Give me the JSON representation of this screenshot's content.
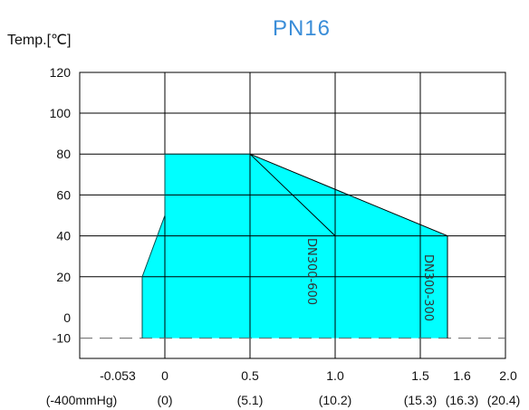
{
  "chart_data": {
    "type": "area",
    "title": "PN16",
    "ylabel": "Temp.[℃]",
    "xlabel": "",
    "grid": true,
    "ylim": [
      -20,
      120
    ],
    "y_ticks": [
      {
        "v": 120,
        "label": "120"
      },
      {
        "v": 100,
        "label": "100"
      },
      {
        "v": 80,
        "label": "80"
      },
      {
        "v": 60,
        "label": "60"
      },
      {
        "v": 40,
        "label": "40"
      },
      {
        "v": 20,
        "label": "20"
      },
      {
        "v": 0,
        "label": "0"
      },
      {
        "v": -10,
        "label": "-10"
      }
    ],
    "x_ticks": [
      {
        "label": "-0.053",
        "sub": "(-400mmHg)"
      },
      {
        "label": "0",
        "sub": "(0)"
      },
      {
        "label": "0.5",
        "sub": "(5.1)"
      },
      {
        "label": "1.0",
        "sub": "(10.2)"
      },
      {
        "label": "1.5",
        "sub": "(15.3)"
      },
      {
        "label": "1.6",
        "sub": "(16.3)"
      },
      {
        "label": "2.0",
        "sub": "(20.4)"
      }
    ],
    "reference_line_y": -10,
    "region_color": "#00ffff",
    "boundary_color": "#000000",
    "region_envelope": [
      {
        "p": -0.053,
        "t": -10
      },
      {
        "p": -0.053,
        "t": 20
      },
      {
        "p": 0,
        "t": 50
      },
      {
        "p": 0,
        "t": 80
      },
      {
        "p": 0.5,
        "t": 80
      },
      {
        "p": 1.0,
        "t": 63
      },
      {
        "p": 1.6,
        "t": 40
      },
      {
        "p": 1.6,
        "t": -10
      }
    ],
    "series": [
      {
        "name": "DN300-600",
        "points": [
          {
            "p": 0.5,
            "t": 80
          },
          {
            "p": 1.0,
            "t": 40
          },
          {
            "p": 1.0,
            "t": -10
          }
        ]
      },
      {
        "name": "DN300-300",
        "points": [
          {
            "p": 0.5,
            "t": 80
          },
          {
            "p": 1.6,
            "t": 40
          },
          {
            "p": 1.6,
            "t": -10
          }
        ]
      }
    ]
  }
}
